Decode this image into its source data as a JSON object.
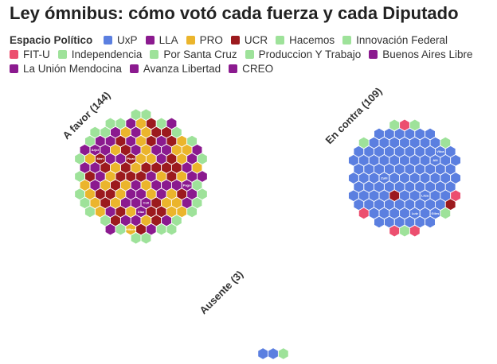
{
  "title": "Ley ómnibus: cómo votó cada fuerza y cada Diputado",
  "legend": {
    "title": "Espacio Político",
    "items": [
      {
        "name": "UxP",
        "color": "#5b7fe0"
      },
      {
        "name": "LLA",
        "color": "#8b1a8f"
      },
      {
        "name": "PRO",
        "color": "#ebb52c"
      },
      {
        "name": "UCR",
        "color": "#9c1a1e"
      },
      {
        "name": "Hacemos",
        "color": "#9ee29a"
      },
      {
        "name": "Innovación Federal",
        "color": "#9ee29a"
      },
      {
        "name": "FIT-U",
        "color": "#ec4f6f"
      },
      {
        "name": "Independencia",
        "color": "#9ee29a"
      },
      {
        "name": "Por Santa Cruz",
        "color": "#9ee29a"
      },
      {
        "name": "Produccion Y Trabajo",
        "color": "#9ee29a"
      },
      {
        "name": "Buenos Aires Libre",
        "color": "#8b1a8f"
      },
      {
        "name": "La Unión Mendocina",
        "color": "#8b1a8f"
      },
      {
        "name": "Avanza Libertad",
        "color": "#8b1a8f"
      },
      {
        "name": "CREO",
        "color": "#8b1a8f"
      }
    ]
  },
  "chart_data": {
    "type": "hexbin-parliament",
    "groups": [
      {
        "label": "A favor (144)",
        "total": 144,
        "composition": [
          {
            "party": "LLA",
            "count": 42
          },
          {
            "party": "PRO",
            "count": 37
          },
          {
            "party": "UCR",
            "count": 33
          },
          {
            "party": "Hacemos",
            "count": 12
          },
          {
            "party": "Innovación Federal",
            "count": 8
          },
          {
            "party": "Independencia",
            "count": 3
          },
          {
            "party": "Por Santa Cruz",
            "count": 2
          },
          {
            "party": "Produccion Y Trabajo",
            "count": 2
          },
          {
            "party": "Buenos Aires Libre",
            "count": 1
          },
          {
            "party": "La Unión Mendocina",
            "count": 1
          },
          {
            "party": "Avanza Libertad",
            "count": 2
          },
          {
            "party": "CREO",
            "count": 1
          }
        ],
        "hex_labels": [
          "Picat",
          "Coll",
          "Diaz",
          "Mert",
          "Pago",
          "Arjol",
          "Hilbert"
        ]
      },
      {
        "label": "En contra (109)",
        "total": 109,
        "composition": [
          {
            "party": "UxP",
            "count": 96
          },
          {
            "party": "FIT-U",
            "count": 5
          },
          {
            "party": "Hacemos",
            "count": 4
          },
          {
            "party": "Innovación Federal",
            "count": 1
          },
          {
            "party": "UCR",
            "count": 2
          },
          {
            "party": "Por Santa Cruz",
            "count": 1
          }
        ],
        "hex_labels": [
          "Zulli",
          "Litza",
          "Alli",
          "Lutz",
          "Vilca",
          "Giles"
        ]
      },
      {
        "label": "Ausente (3)",
        "total": 3,
        "composition": [
          {
            "party": "UxP",
            "count": 2
          },
          {
            "party": "Hacemos",
            "count": 1
          }
        ],
        "hex_labels": []
      }
    ]
  }
}
